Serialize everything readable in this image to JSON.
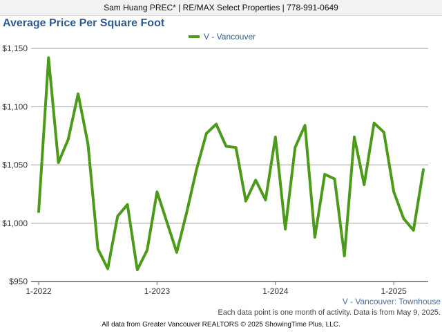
{
  "header": {
    "contact_line": "Sam Huang PREC* | RE/MAX Select Properties | 778-991-0649"
  },
  "chart_data": {
    "type": "line",
    "title": "Average Price Per Square Foot",
    "xlabel": "",
    "ylabel": "",
    "x": [
      "2022-01",
      "2022-02",
      "2022-03",
      "2022-04",
      "2022-05",
      "2022-06",
      "2022-07",
      "2022-08",
      "2022-09",
      "2022-10",
      "2022-11",
      "2022-12",
      "2023-01",
      "2023-02",
      "2023-03",
      "2023-04",
      "2023-05",
      "2023-06",
      "2023-07",
      "2023-08",
      "2023-09",
      "2023-10",
      "2023-11",
      "2023-12",
      "2024-01",
      "2024-02",
      "2024-03",
      "2024-04",
      "2024-05",
      "2024-06",
      "2024-07",
      "2024-08",
      "2024-09",
      "2024-10",
      "2024-11",
      "2024-12",
      "2025-01",
      "2025-02",
      "2025-03",
      "2025-04"
    ],
    "series": [
      {
        "name": "V - Vancouver",
        "color": "#4c9a1a",
        "values": [
          1010,
          1142,
          1052,
          1072,
          1111,
          1068,
          978,
          961,
          1006,
          1016,
          960,
          977,
          1027,
          1001,
          975,
          1009,
          1046,
          1077,
          1085,
          1066,
          1065,
          1019,
          1037,
          1020,
          1074,
          995,
          1065,
          1084,
          988,
          1042,
          1038,
          972,
          1074,
          1033,
          1086,
          1078,
          1027,
          1004,
          994,
          1046
        ]
      }
    ],
    "ylim": [
      950,
      1150
    ],
    "y_ticks": [
      950,
      1000,
      1050,
      1100,
      1150
    ],
    "y_tick_labels": [
      "$950",
      "$1,000",
      "$1,050",
      "$1,100",
      "$1,150"
    ],
    "x_ticks": [
      "2022-01",
      "2023-01",
      "2024-01",
      "2025-01"
    ],
    "x_tick_labels": [
      "1-2022",
      "1-2023",
      "1-2024",
      "1-2025"
    ],
    "grid": true,
    "legend_position": "top-center",
    "series_caption": "V - Vancouver: Townhouse",
    "note": "Each data point is one month of activity. Data is from May 9, 2025.",
    "gridline_color": "#9a9a9a",
    "axis_color": "#666666"
  },
  "footer": {
    "text": "All data from Greater Vancouver REALTORS © 2025 ShowingTime Plus, LLC."
  }
}
